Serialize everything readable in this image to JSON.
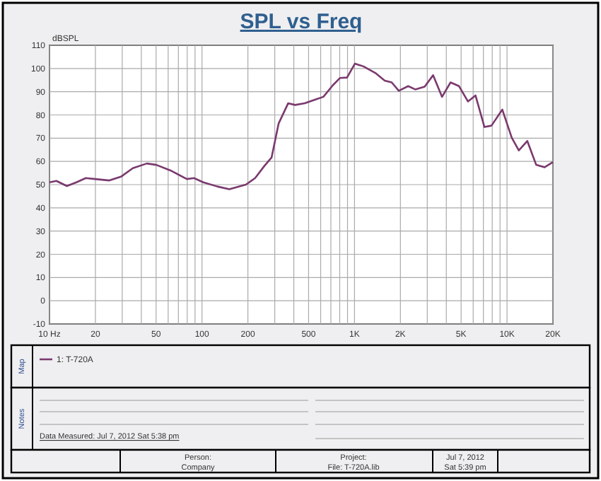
{
  "chart_data": {
    "type": "line",
    "title": "SPL vs Freq",
    "ylabel": "dBSPL",
    "log": "x",
    "grid": true,
    "legend": "bottom",
    "marker": "none",
    "line_style": "solid",
    "xlim": [
      10,
      20000
    ],
    "ylim": [
      -10,
      110
    ],
    "xticks": [
      {
        "value": 10,
        "label": "10 Hz"
      },
      20,
      50,
      100,
      200,
      500,
      {
        "value": 1000,
        "label": "1K"
      },
      {
        "value": 2000,
        "label": "2K"
      },
      {
        "value": 5000,
        "label": "5K"
      },
      {
        "value": 10000,
        "label": "10K"
      },
      {
        "value": 20000,
        "label": "20K"
      }
    ],
    "yticks": [
      -10,
      0,
      10,
      20,
      30,
      40,
      50,
      60,
      70,
      80,
      90,
      100,
      110
    ],
    "series": [
      {
        "name": "1: T-720A",
        "color": "#7a3a6e",
        "x": [
          10,
          11.1,
          13,
          15,
          17.3,
          19.9,
          24.7,
          29.4,
          35.2,
          43.5,
          50.2,
          62.1,
          79.6,
          88.6,
          102,
          126,
          151,
          194,
          223,
          257,
          286,
          318,
          367,
          408,
          471,
          562,
          625,
          721,
          802,
          893,
          1007,
          1145,
          1368,
          1578,
          1754,
          1951,
          2249,
          2502,
          2885,
          3276,
          3750,
          4264,
          4845,
          5544,
          6214,
          7112,
          7908,
          9311,
          10740,
          11950,
          13580,
          15540,
          17660,
          20000
        ],
        "values": [
          51,
          51.6,
          49.4,
          51,
          52.8,
          52.4,
          51.8,
          53.4,
          57.1,
          59.1,
          58.5,
          56.1,
          52.4,
          52.8,
          51,
          49.2,
          48,
          50,
          52.8,
          58.1,
          61.7,
          76.3,
          85,
          84.3,
          85,
          86.8,
          87.8,
          92.8,
          95.9,
          96.1,
          102.1,
          100.9,
          98.1,
          94.8,
          94,
          90.4,
          92.4,
          91,
          92.2,
          97.1,
          87.8,
          94,
          92.4,
          85.8,
          88.4,
          74.8,
          75.4,
          82.3,
          70.2,
          64.7,
          68.8,
          58.5,
          57.5,
          59.7
        ]
      }
    ],
    "annotations": [
      "Map",
      "Notes",
      "Data Measured: Jul 7, 2012  Sat 5:38 pm",
      "Person:",
      "Company",
      "Project:",
      "File: T-720A.lib",
      "Jul 7, 2012",
      "Sat 5:39 pm"
    ]
  }
}
